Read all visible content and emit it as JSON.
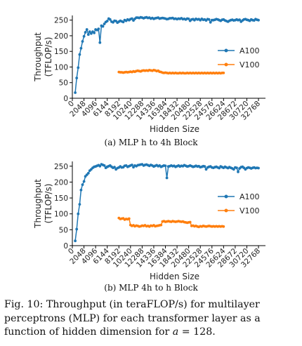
{
  "chart_data": [
    {
      "type": "line",
      "subcaption": "(a) MLP h to 4h Block",
      "xlabel": "Hidden Size",
      "ylabel_line1": "Throughput",
      "ylabel_line2": "(TFLOP/s)",
      "xticks": [
        "0",
        "2048",
        "4096",
        "6144",
        "8192",
        "10240",
        "12288",
        "14336",
        "16384",
        "18432",
        "20480",
        "22528",
        "24576",
        "26624",
        "28672",
        "30720",
        "32768"
      ],
      "yticks": [
        "0",
        "50",
        "100",
        "150",
        "200",
        "250"
      ],
      "xlim": [
        0,
        34000
      ],
      "ylim": [
        0,
        265
      ],
      "legend_position": "center-right",
      "series": [
        {
          "name": "A100",
          "color": "#1f77b4",
          "x": [
            512,
            768,
            1024,
            1280,
            1536,
            1792,
            2048,
            2304,
            2560,
            2816,
            3072,
            3328,
            3584,
            3840,
            4096,
            4352,
            4608,
            4864,
            5120,
            5376,
            5632,
            5888,
            6144,
            6400,
            6656,
            6912,
            7168,
            7424,
            7680,
            7936,
            8192,
            8448,
            8704,
            8960,
            9216,
            9472,
            9728,
            9984,
            10240,
            10496,
            10752,
            11008,
            11264,
            11520,
            11776,
            12032,
            12288,
            12544,
            12800,
            13056,
            13312,
            13568,
            13824,
            14080,
            14336,
            14592,
            14848,
            15104,
            15360,
            15616,
            15872,
            16128,
            16384,
            16640,
            16896,
            17152,
            17408,
            17664,
            17920,
            18176,
            18432,
            18688,
            18944,
            19200,
            19456,
            19712,
            19968,
            20224,
            20480,
            20736,
            20992,
            21248,
            21504,
            21760,
            22016,
            22272,
            22528,
            22784,
            23040,
            23296,
            23552,
            23808,
            24064,
            24320,
            24576,
            24832,
            25088,
            25344,
            25600,
            25856,
            26112,
            26368,
            26624,
            26880,
            27136,
            27392,
            27648,
            27904,
            28160,
            28416,
            28672,
            28928,
            29184,
            29440,
            29696,
            29952,
            30208,
            30464,
            30720,
            30976,
            31232,
            31488,
            31744,
            32000,
            32256,
            32512,
            32768
          ],
          "y": [
            18,
            65,
            98,
            140,
            160,
            182,
            198,
            211,
            220,
            204,
            213,
            207,
            213,
            209,
            220,
            218,
            222,
            178,
            232,
            230,
            238,
            244,
            247,
            255,
            252,
            245,
            243,
            248,
            247,
            242,
            245,
            248,
            246,
            244,
            250,
            248,
            252,
            250,
            253,
            255,
            249,
            254,
            258,
            258,
            257,
            259,
            258,
            256,
            258,
            259,
            257,
            258,
            255,
            257,
            254,
            256,
            257,
            258,
            255,
            256,
            257,
            256,
            255,
            253,
            254,
            256,
            256,
            257,
            254,
            255,
            253,
            255,
            254,
            256,
            253,
            254,
            252,
            255,
            254,
            248,
            252,
            253,
            250,
            254,
            252,
            253,
            250,
            254,
            251,
            252,
            249,
            253,
            252,
            243,
            250,
            250,
            251,
            253,
            252,
            250,
            248,
            251,
            252,
            249,
            247,
            245,
            248,
            250,
            251,
            249,
            250,
            252,
            250,
            251,
            245,
            249,
            252,
            253,
            251,
            250,
            248,
            252,
            250,
            249,
            253,
            251,
            250
          ]
        },
        {
          "name": "V100",
          "color": "#ff7f0e",
          "x": [
            8192,
            8448,
            8704,
            8960,
            9216,
            9472,
            9728,
            9984,
            10240,
            10496,
            10752,
            11008,
            11264,
            11520,
            11776,
            12032,
            12288,
            12544,
            12800,
            13056,
            13312,
            13568,
            13824,
            14080,
            14336,
            14592,
            14848,
            15104,
            15360,
            15616,
            15872,
            16128,
            16384,
            16640,
            16896,
            17152,
            17408,
            17664,
            17920,
            18176,
            18432,
            18688,
            18944,
            19200,
            19456,
            19712,
            19968,
            20224,
            20480,
            20736,
            20992,
            21248,
            21504,
            21760,
            22016,
            22272,
            22528,
            22784,
            23040,
            23296,
            23552,
            23808,
            24064,
            24320,
            24576,
            24832,
            25088,
            25344,
            25600,
            25856,
            26112,
            26368,
            26624
          ],
          "y": [
            84,
            83,
            83,
            82,
            83,
            84,
            83,
            84,
            85,
            84,
            86,
            85,
            87,
            88,
            87,
            86,
            88,
            89,
            88,
            89,
            88,
            90,
            89,
            88,
            90,
            89,
            87,
            88,
            85,
            84,
            82,
            81,
            82,
            81,
            80,
            81,
            80,
            81,
            80,
            81,
            80,
            80,
            81,
            80,
            81,
            80,
            80,
            81,
            80,
            81,
            80,
            81,
            80,
            81,
            80,
            81,
            80,
            81,
            80,
            81,
            80,
            81,
            80,
            81,
            80,
            81,
            80,
            81,
            80,
            81,
            80,
            81,
            81
          ]
        }
      ]
    },
    {
      "type": "line",
      "subcaption": "(b) MLP 4h to h Block",
      "xlabel": "Hidden Size",
      "ylabel_line1": "Throughput",
      "ylabel_line2": "(TFLOP/s)",
      "xticks": [
        "0",
        "2048",
        "4096",
        "6144",
        "8192",
        "10240",
        "12288",
        "14336",
        "16384",
        "18432",
        "20480",
        "22528",
        "24576",
        "26624",
        "28672",
        "30720",
        "32768"
      ],
      "yticks": [
        "0",
        "50",
        "100",
        "150",
        "200",
        "250"
      ],
      "xlim": [
        0,
        34000
      ],
      "ylim": [
        0,
        265
      ],
      "legend_position": "center-right",
      "series": [
        {
          "name": "A100",
          "color": "#1f77b4",
          "x": [
            512,
            768,
            1024,
            1280,
            1536,
            1792,
            2048,
            2304,
            2560,
            2816,
            3072,
            3328,
            3584,
            3840,
            4096,
            4352,
            4608,
            4864,
            5120,
            5376,
            5632,
            5888,
            6144,
            6400,
            6656,
            6912,
            7168,
            7424,
            7680,
            7936,
            8192,
            8448,
            8704,
            8960,
            9216,
            9472,
            9728,
            9984,
            10240,
            10496,
            10752,
            11008,
            11264,
            11520,
            11776,
            12032,
            12288,
            12544,
            12800,
            13056,
            13312,
            13568,
            13824,
            14080,
            14336,
            14592,
            14848,
            15104,
            15360,
            15616,
            15872,
            16128,
            16384,
            16640,
            16896,
            17152,
            17408,
            17664,
            17920,
            18176,
            18432,
            18688,
            18944,
            19200,
            19456,
            19712,
            19968,
            20224,
            20480,
            20736,
            20992,
            21248,
            21504,
            21760,
            22016,
            22272,
            22528,
            22784,
            23040,
            23296,
            23552,
            23808,
            24064,
            24320,
            24576,
            24832,
            25088,
            25344,
            25600,
            25856,
            26112,
            26368,
            26624,
            26880,
            27136,
            27392,
            27648,
            27904,
            28160,
            28416,
            28672,
            28928,
            29184,
            29440,
            29696,
            29952,
            30208,
            30464,
            30720,
            30976,
            31232,
            31488,
            31744,
            32000,
            32256,
            32512,
            32768
          ],
          "y": [
            15,
            52,
            100,
            130,
            175,
            192,
            202,
            218,
            223,
            228,
            236,
            240,
            245,
            248,
            249,
            251,
            253,
            250,
            256,
            254,
            252,
            245,
            248,
            250,
            252,
            248,
            245,
            247,
            240,
            244,
            246,
            249,
            246,
            247,
            251,
            252,
            248,
            250,
            252,
            254,
            247,
            252,
            250,
            253,
            254,
            255,
            256,
            252,
            254,
            255,
            253,
            251,
            254,
            252,
            249,
            251,
            253,
            250,
            252,
            248,
            250,
            252,
            251,
            213,
            249,
            250,
            252,
            250,
            251,
            248,
            250,
            252,
            249,
            251,
            250,
            253,
            251,
            249,
            250,
            252,
            250,
            248,
            249,
            251,
            249,
            250,
            247,
            248,
            250,
            249,
            240,
            246,
            248,
            249,
            246,
            245,
            247,
            248,
            246,
            244,
            249,
            247,
            245,
            248,
            246,
            244,
            247,
            245,
            243,
            240,
            246,
            245,
            232,
            243,
            247,
            248,
            245,
            240,
            244,
            246,
            245,
            243,
            245,
            246,
            244,
            245,
            244
          ]
        },
        {
          "name": "V100",
          "color": "#ff7f0e",
          "x": [
            8192,
            8448,
            8704,
            8960,
            9216,
            9472,
            9728,
            9984,
            10240,
            10496,
            10752,
            11008,
            11264,
            11520,
            11776,
            12032,
            12288,
            12544,
            12800,
            13056,
            13312,
            13568,
            13824,
            14080,
            14336,
            14592,
            14848,
            15104,
            15360,
            15616,
            15872,
            16128,
            16384,
            16640,
            16896,
            17152,
            17408,
            17664,
            17920,
            18176,
            18432,
            18688,
            18944,
            19200,
            19456,
            19712,
            19968,
            20224,
            20480,
            20736,
            20992,
            21248,
            21504,
            21760,
            22016,
            22272,
            22528,
            22784,
            23040,
            23296,
            23552,
            23808,
            24064,
            24320,
            24576,
            24832,
            25088,
            25344,
            25600,
            25856,
            26112,
            26368,
            26624
          ],
          "y": [
            87,
            84,
            85,
            86,
            82,
            84,
            83,
            85,
            65,
            62,
            64,
            61,
            63,
            62,
            60,
            61,
            63,
            62,
            64,
            61,
            62,
            60,
            63,
            62,
            64,
            61,
            62,
            63,
            64,
            65,
            76,
            77,
            75,
            76,
            77,
            76,
            75,
            77,
            76,
            75,
            76,
            77,
            76,
            75,
            76,
            74,
            73,
            72,
            73,
            74,
            62,
            63,
            61,
            62,
            60,
            59,
            61,
            60,
            62,
            61,
            60,
            61,
            62,
            61,
            60,
            61,
            60,
            61,
            60,
            61,
            60,
            61,
            60
          ]
        }
      ]
    }
  ],
  "caption": {
    "prefix": "Fig. 10: Throughput (in teraFLOP/s) for multilayer perceptrons (MLP) for each transformer layer as a function of hidden dimension for ",
    "var": "a",
    "suffix": " = 128."
  }
}
